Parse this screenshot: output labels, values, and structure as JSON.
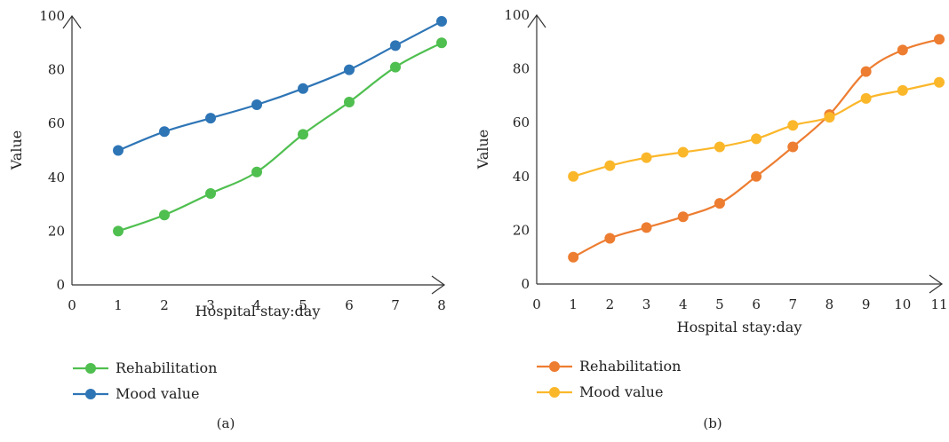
{
  "chart_data": [
    {
      "type": "line",
      "panel_label": "(a)",
      "xlabel": "Hospital stay:day",
      "ylabel": "Value",
      "x": [
        1,
        2,
        3,
        4,
        5,
        6,
        7,
        8
      ],
      "xlim": [
        0,
        8
      ],
      "ylim": [
        0,
        100
      ],
      "xticks": [
        "0",
        "1",
        "2",
        "3",
        "4",
        "5",
        "6",
        "7",
        "8"
      ],
      "yticks": [
        "0",
        "20",
        "40",
        "60",
        "80",
        "100"
      ],
      "grid": false,
      "legend_placement": "bottom-left",
      "series": [
        {
          "name": "Rehabilitation",
          "color": "#4fbf4f",
          "values": [
            20,
            26,
            34,
            42,
            56,
            68,
            81,
            90
          ]
        },
        {
          "name": "Mood value",
          "color": "#2e75b6",
          "values": [
            50,
            57,
            62,
            67,
            73,
            80,
            89,
            98
          ]
        }
      ]
    },
    {
      "type": "line",
      "panel_label": "(b)",
      "xlabel": "Hospital stay:day",
      "ylabel": "Value",
      "x": [
        1,
        2,
        3,
        4,
        5,
        6,
        7,
        8,
        9,
        10,
        11
      ],
      "xlim": [
        0,
        11
      ],
      "ylim": [
        0,
        100
      ],
      "xticks": [
        "0",
        "1",
        "2",
        "3",
        "4",
        "5",
        "6",
        "7",
        "8",
        "9",
        "10",
        "11"
      ],
      "yticks": [
        "0",
        "20",
        "40",
        "60",
        "80",
        "100"
      ],
      "grid": false,
      "legend_placement": "bottom-left",
      "series": [
        {
          "name": "Rehabilitation",
          "color": "#ed7d31",
          "values": [
            10,
            17,
            21,
            25,
            30,
            40,
            51,
            63,
            79,
            87,
            91
          ]
        },
        {
          "name": "Mood value",
          "color": "#fbb72a",
          "values": [
            40,
            44,
            47,
            49,
            51,
            54,
            59,
            62,
            69,
            72,
            75
          ]
        }
      ]
    }
  ]
}
